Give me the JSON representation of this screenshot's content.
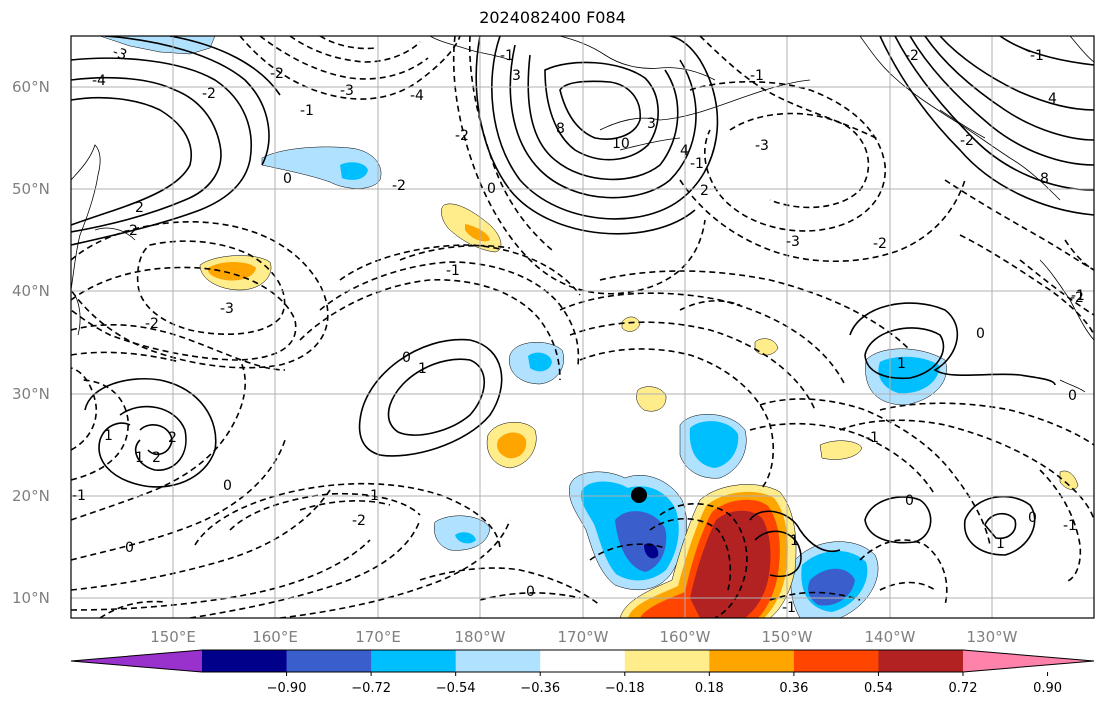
{
  "title": "2024082400 F084",
  "lat_labels": [
    "60°N",
    "50°N",
    "40°N",
    "30°N",
    "20°N",
    "10°N"
  ],
  "lon_labels": [
    "150°E",
    "160°E",
    "170°E",
    "180°W",
    "170°W",
    "160°W",
    "150°W",
    "140°W",
    "130°W"
  ],
  "colorbar": {
    "ticks": [
      "−0.90",
      "−0.72",
      "−0.54",
      "−0.36",
      "−0.18",
      "0.18",
      "0.36",
      "0.54",
      "0.72",
      "0.90"
    ],
    "colors": [
      "#9932cc",
      "#00008b",
      "#3a5fcd",
      "#00bfff",
      "#b0e2ff",
      "#ffffff",
      "#ffec8b",
      "#ffa500",
      "#ff4500",
      "#b22222",
      "#ff82ab"
    ]
  },
  "contour_labels": [
    "-3",
    "-4",
    "-2",
    "-2",
    "-3",
    "-2",
    "-1",
    "-1",
    "-1",
    "-3",
    "-2",
    "-4",
    "-3",
    "-2",
    "-2",
    "-1",
    "-1",
    "-2",
    "-1",
    "-2",
    "-3",
    "-2",
    "-1",
    "-1",
    "-1",
    "-1",
    "-1",
    "-2",
    "-2",
    "0",
    "0",
    "0",
    "0",
    "0",
    "0",
    "0",
    "0",
    "0",
    "0",
    "1",
    "1",
    "1",
    "1",
    "1",
    "1",
    "2",
    "2",
    "2",
    "2",
    "3",
    "3",
    "4",
    "4",
    "8",
    "10",
    "8",
    "-1"
  ],
  "marker_color": "#000000"
}
